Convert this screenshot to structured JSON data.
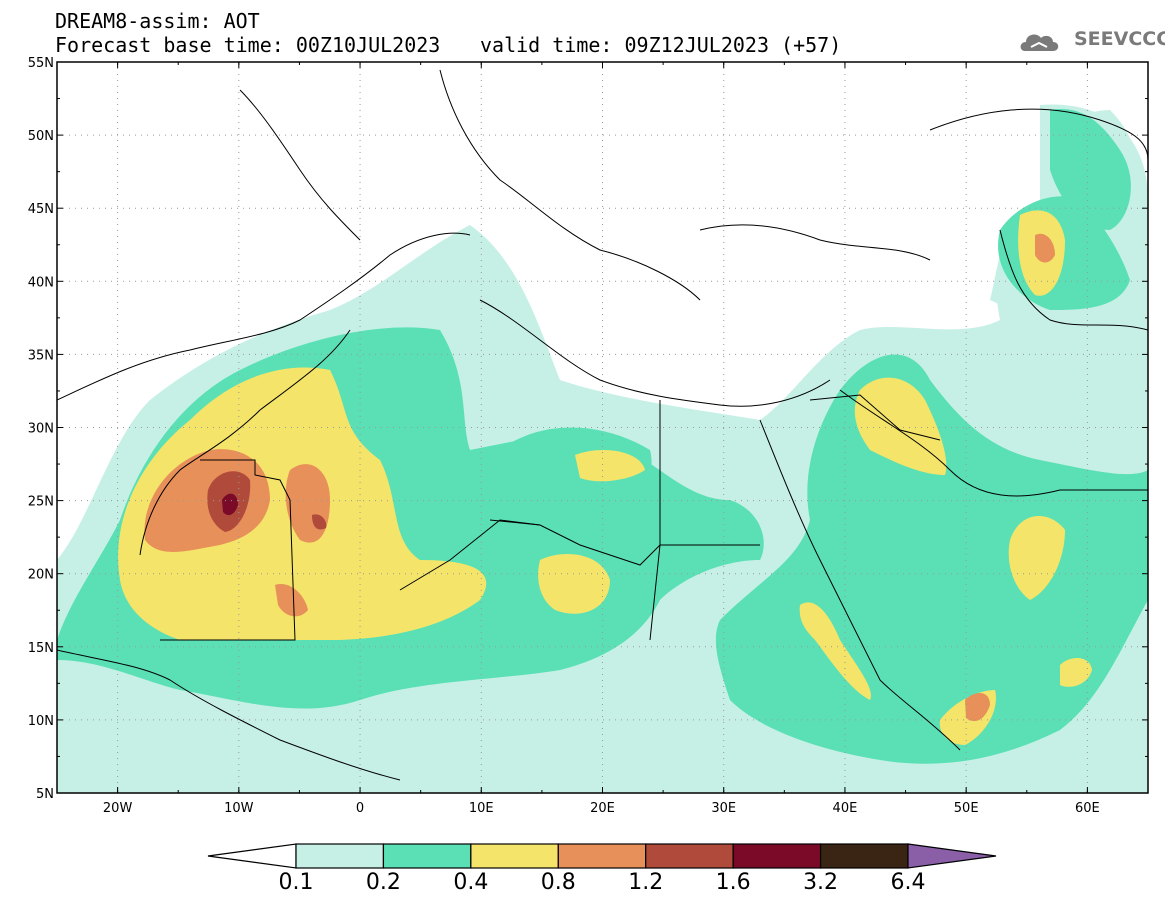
{
  "header": {
    "title": "DREAM8-assim: AOT",
    "base_time": "Forecast base time: 00Z10JUL2023",
    "valid_time": "valid time: 09Z12JUL2023 (+57)"
  },
  "logo": {
    "text": "SEEVCCC",
    "icon": "cloud-logo-icon"
  },
  "map": {
    "extent": {
      "lon_min": -25,
      "lon_max": 65,
      "lat_min": 5,
      "lat_max": 55
    },
    "lat_labels": [
      "55N",
      "50N",
      "45N",
      "40N",
      "35N",
      "30N",
      "25N",
      "20N",
      "15N",
      "10N",
      "5N"
    ],
    "lon_labels": [
      "20W",
      "10W",
      "0",
      "10E",
      "20E",
      "30E",
      "40E",
      "50E",
      "60E"
    ]
  },
  "colorbar": {
    "labels": [
      "0.1",
      "0.2",
      "0.4",
      "0.8",
      "1.2",
      "1.6",
      "3.2",
      "6.4"
    ],
    "colors": [
      "#ffffff",
      "#c6f0e6",
      "#5ae0b4",
      "#f4e46a",
      "#e8905a",
      "#b04a3a",
      "#7a0a28",
      "#3a2414",
      "#8a5fa8"
    ]
  }
}
